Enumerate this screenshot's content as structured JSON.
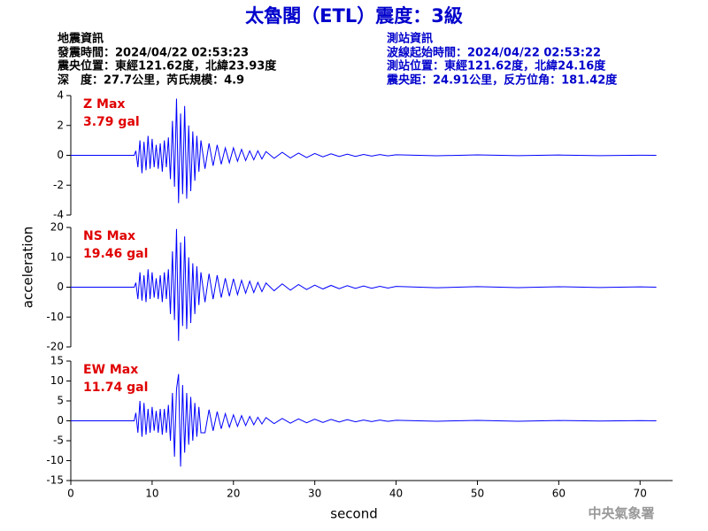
{
  "title": "太魯閣（ETL）震度：3級",
  "station_info": {
    "left": [
      "地震資訊",
      "發震時間：2024/04/22 02:53:23",
      "震央位置：東經121.62度，北緯23.93度",
      "深　度：27.7公里，芮氏規模：4.9"
    ],
    "right": [
      "測站資訊",
      "波線起始時間：2024/04/22 02:53:22",
      "測站位置：東經121.62度，北緯24.16度",
      "震央距：24.91公里，反方位角：181.42度"
    ]
  },
  "ylabel": "acceleration",
  "footer": "中央氣象署",
  "chart_data": [
    {
      "type": "line",
      "label": "Z Max",
      "max_label": "3.79 gal",
      "color": "#0000ff",
      "x": [
        0,
        7.8,
        8,
        8.25,
        8.5,
        8.75,
        9,
        9.25,
        9.5,
        9.75,
        10,
        10.25,
        10.5,
        10.75,
        11,
        11.25,
        11.5,
        11.75,
        12,
        12.25,
        12.5,
        12.75,
        13,
        13.25,
        13.5,
        13.75,
        14,
        14.25,
        14.5,
        14.75,
        15,
        15.25,
        15.5,
        15.75,
        16,
        16.5,
        17,
        17.5,
        18,
        18.5,
        19,
        19.5,
        20,
        20.5,
        21,
        21.5,
        22,
        22.5,
        23,
        23.5,
        24,
        25,
        26,
        27,
        28,
        29,
        30,
        31,
        32,
        33,
        34,
        35,
        36,
        37,
        38,
        39,
        40,
        45,
        50,
        55,
        60,
        65,
        70,
        72
      ],
      "values": [
        0,
        0,
        0.3,
        -0.8,
        1.0,
        -1.2,
        0.9,
        -1.0,
        1.3,
        -0.9,
        1.1,
        -0.8,
        0.7,
        -0.9,
        0.8,
        -1.1,
        1.0,
        -0.8,
        1.2,
        -1.6,
        2.3,
        -2.1,
        3.79,
        -3.2,
        2.8,
        -2.6,
        3.3,
        -2.9,
        2.0,
        -2.4,
        1.6,
        -1.7,
        1.3,
        -1.1,
        1.0,
        -0.9,
        0.8,
        -0.7,
        0.7,
        -0.6,
        0.5,
        -0.5,
        0.5,
        -0.4,
        0.4,
        -0.35,
        0.3,
        -0.3,
        0.3,
        -0.25,
        0.25,
        -0.2,
        0.2,
        -0.18,
        0.15,
        -0.15,
        0.12,
        -0.1,
        0.1,
        -0.08,
        0.08,
        -0.07,
        0.06,
        -0.05,
        0.05,
        -0.04,
        0.04,
        -0.03,
        0.03,
        -0.02,
        0.02,
        -0.02,
        0.01,
        0
      ],
      "xlim": [
        0,
        74
      ],
      "ylim": [
        -4,
        4
      ],
      "yticks": [
        -4,
        -2,
        0,
        2,
        4
      ]
    },
    {
      "type": "line",
      "label": "NS Max",
      "max_label": "19.46 gal",
      "color": "#0000ff",
      "x": [
        0,
        7.8,
        8,
        8.25,
        8.5,
        8.75,
        9,
        9.25,
        9.5,
        9.75,
        10,
        10.25,
        10.5,
        10.75,
        11,
        11.25,
        11.5,
        11.75,
        12,
        12.25,
        12.5,
        12.75,
        13,
        13.25,
        13.5,
        13.75,
        14,
        14.25,
        14.5,
        14.75,
        15,
        15.25,
        15.5,
        15.75,
        16,
        16.5,
        17,
        17.5,
        18,
        18.5,
        19,
        19.5,
        20,
        20.5,
        21,
        21.5,
        22,
        22.5,
        23,
        23.5,
        24,
        25,
        26,
        27,
        28,
        29,
        30,
        31,
        32,
        33,
        34,
        35,
        36,
        37,
        38,
        39,
        40,
        45,
        50,
        55,
        60,
        65,
        70,
        72
      ],
      "values": [
        0,
        0,
        1.5,
        -4,
        5,
        -4.5,
        4,
        -5,
        6,
        -4,
        5,
        -3.5,
        3,
        -4,
        4,
        -5,
        5,
        -4,
        6,
        -9,
        12,
        -11,
        19.46,
        -18,
        15,
        -13,
        17,
        -14,
        10,
        -12,
        8,
        -9,
        7,
        -6,
        5,
        -5,
        4.5,
        -4,
        4,
        -3.5,
        3,
        -3,
        2.8,
        -2.5,
        2.3,
        -2,
        2,
        -1.8,
        1.6,
        -1.5,
        1.4,
        -1.2,
        1.1,
        -1,
        0.9,
        -0.8,
        0.7,
        -0.6,
        0.6,
        -0.5,
        0.5,
        -0.4,
        0.4,
        -0.35,
        0.3,
        -0.3,
        0.25,
        -0.2,
        0.2,
        -0.15,
        0.15,
        -0.1,
        0.1,
        0
      ],
      "xlim": [
        0,
        74
      ],
      "ylim": [
        -20,
        20
      ],
      "yticks": [
        -20,
        -10,
        0,
        10,
        20
      ]
    },
    {
      "type": "line",
      "label": "EW Max",
      "max_label": "11.74 gal",
      "color": "#0000ff",
      "x": [
        0,
        7.8,
        8,
        8.25,
        8.5,
        8.75,
        9,
        9.25,
        9.5,
        9.75,
        10,
        10.25,
        10.5,
        10.75,
        11,
        11.25,
        11.5,
        11.75,
        12,
        12.25,
        12.5,
        12.75,
        13,
        13.25,
        13.5,
        13.75,
        14,
        14.25,
        14.5,
        14.75,
        15,
        15.25,
        15.5,
        15.75,
        16,
        16.5,
        17,
        17.5,
        18,
        18.5,
        19,
        19.5,
        20,
        20.5,
        21,
        21.5,
        22,
        22.5,
        23,
        23.5,
        24,
        25,
        26,
        27,
        28,
        29,
        30,
        31,
        32,
        33,
        34,
        35,
        36,
        37,
        38,
        39,
        40,
        45,
        50,
        55,
        60,
        65,
        70,
        72
      ],
      "values": [
        0,
        0,
        2,
        -3,
        5,
        -4,
        4.5,
        -3.5,
        3,
        -3,
        3.5,
        -2.5,
        2.5,
        -3,
        3,
        -3.5,
        3,
        -3,
        4,
        -5,
        7,
        -9,
        8,
        11.74,
        -11.5,
        9,
        -8,
        7,
        -6,
        6,
        -5,
        4.5,
        -4,
        3.5,
        -3,
        -3,
        2.8,
        -2.5,
        2.3,
        -2,
        1.8,
        -1.6,
        1.5,
        -1.4,
        1.3,
        -1.2,
        1.1,
        -1,
        0.9,
        -0.8,
        0.8,
        -0.7,
        0.6,
        -0.6,
        0.5,
        -0.5,
        0.4,
        -0.4,
        0.35,
        -0.3,
        0.3,
        -0.25,
        0.2,
        -0.2,
        0.2,
        -0.15,
        0.15,
        -0.1,
        0.1,
        -0.1,
        0.08,
        -0.05,
        0.05,
        0
      ],
      "xlim": [
        0,
        74
      ],
      "ylim": [
        -15,
        15
      ],
      "yticks": [
        -15,
        -10,
        -5,
        0,
        5,
        10,
        15
      ],
      "xticks": [
        0,
        10,
        20,
        30,
        40,
        50,
        60,
        70
      ],
      "xlabel": "second"
    }
  ]
}
